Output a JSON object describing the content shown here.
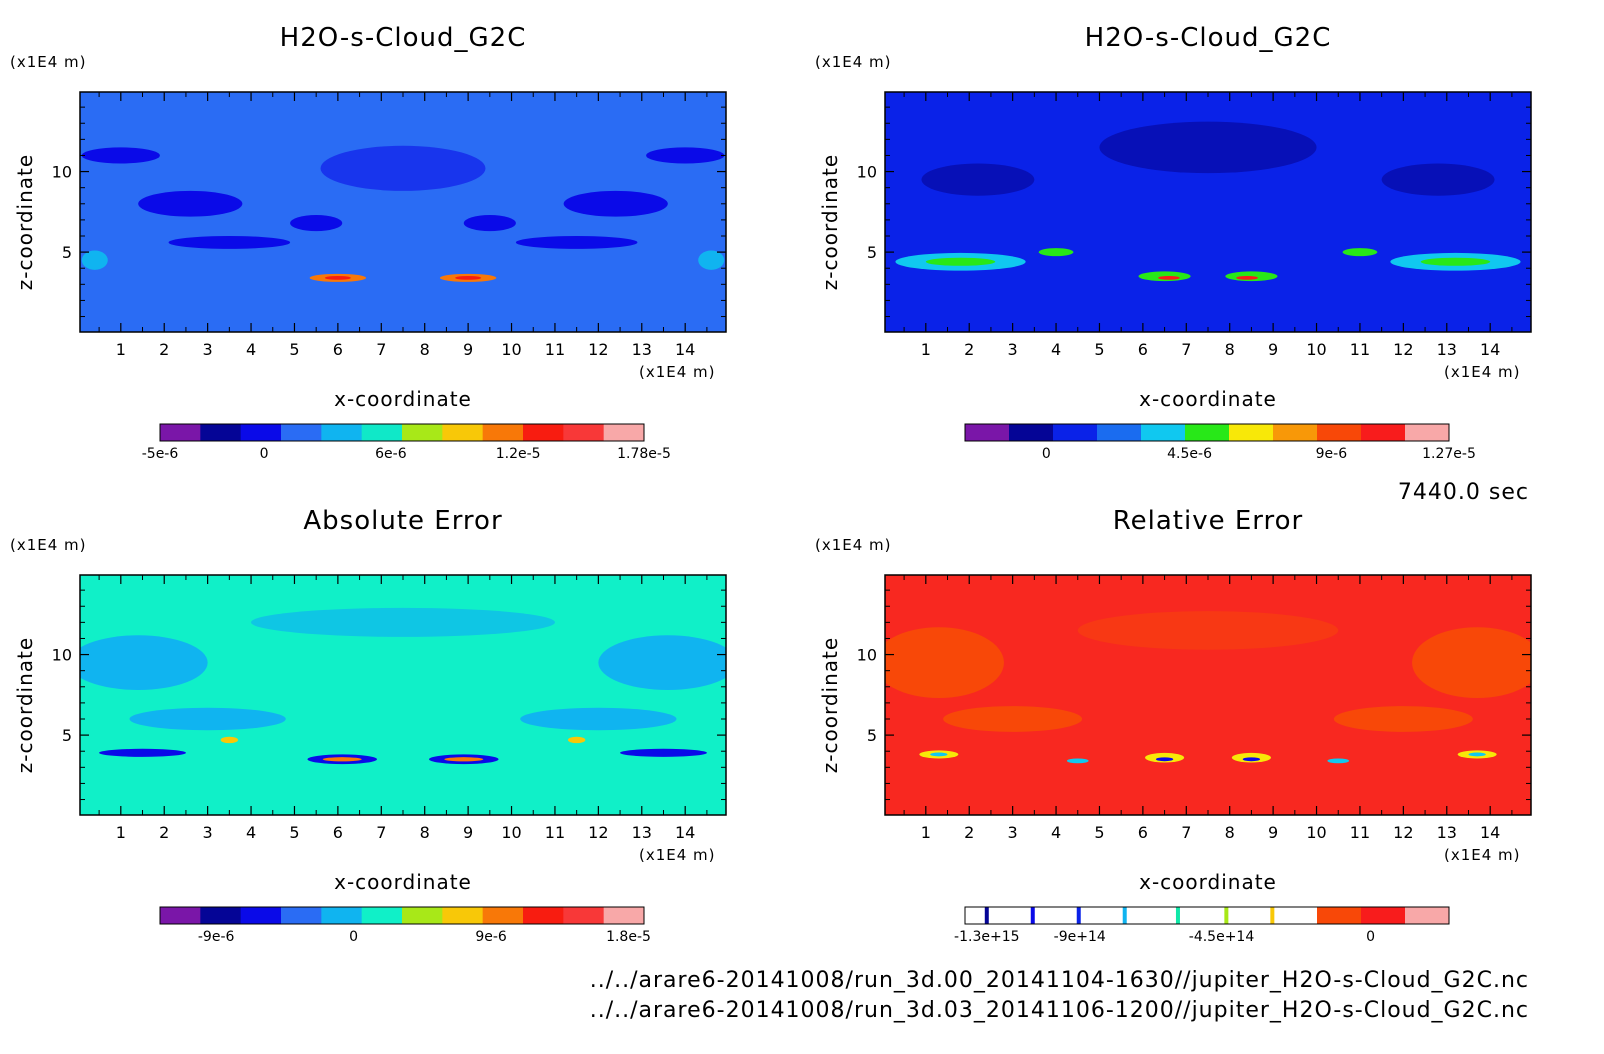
{
  "chart_data": [
    {
      "type": "heatmap",
      "title": "H2O-s-Cloud_G2C",
      "xlabel": "x-coordinate",
      "ylabel": "z-coordinate",
      "x_unit": "(x1E4 m)",
      "y_unit": "(x1E4 m)",
      "xlim": [
        0.06,
        14.94
      ],
      "ylim": [
        0.04,
        14.94
      ],
      "x_ticks": [
        "1",
        "2",
        "3",
        "4",
        "5",
        "6",
        "7",
        "8",
        "9",
        "10",
        "11",
        "12",
        "13",
        "14"
      ],
      "y_ticks": [
        "5",
        "10"
      ],
      "background_color": "#2a6cf4",
      "colorbar": {
        "colors": [
          "#7a16a8",
          "#050596",
          "#0a0ae8",
          "#2a6cf4",
          "#10b4f0",
          "#10e8c8",
          "#a8e818",
          "#f8c808",
          "#f87808",
          "#f81c10",
          "#f83838",
          "#f8a8a8"
        ],
        "labels": [
          "-5e-6",
          "0",
          "6e-6",
          "1.2e-5",
          "1.78e-5"
        ]
      }
    },
    {
      "type": "heatmap",
      "title": "H2O-s-Cloud_G2C",
      "xlabel": "x-coordinate",
      "ylabel": "z-coordinate",
      "x_unit": "(x1E4 m)",
      "y_unit": "(x1E4 m)",
      "xlim": [
        0.06,
        14.94
      ],
      "ylim": [
        0.04,
        14.94
      ],
      "x_ticks": [
        "1",
        "2",
        "3",
        "4",
        "5",
        "6",
        "7",
        "8",
        "9",
        "10",
        "11",
        "12",
        "13",
        "14"
      ],
      "y_ticks": [
        "5",
        "10"
      ],
      "background_color": "#0a22e8",
      "colorbar": {
        "colors": [
          "#7a16a8",
          "#050596",
          "#0a22e8",
          "#1a6cf0",
          "#10c8f0",
          "#28e818",
          "#f8e808",
          "#f89808",
          "#f84808",
          "#f81c1c",
          "#f8a8a8"
        ],
        "labels": [
          "0",
          "4.5e-6",
          "9e-6",
          "1.27e-5"
        ]
      }
    },
    {
      "type": "heatmap",
      "title": "Absolute Error",
      "xlabel": "x-coordinate",
      "ylabel": "z-coordinate",
      "x_unit": "(x1E4 m)",
      "y_unit": "(x1E4 m)",
      "xlim": [
        0.06,
        14.94
      ],
      "ylim": [
        0.04,
        14.94
      ],
      "x_ticks": [
        "1",
        "2",
        "3",
        "4",
        "5",
        "6",
        "7",
        "8",
        "9",
        "10",
        "11",
        "12",
        "13",
        "14"
      ],
      "y_ticks": [
        "5",
        "10"
      ],
      "background_color": "#10f0c8",
      "colorbar": {
        "colors": [
          "#7a16a8",
          "#050596",
          "#0a0ae8",
          "#2a6cf4",
          "#10b4f0",
          "#10f0c8",
          "#a8e818",
          "#f8c808",
          "#f87808",
          "#f81c10",
          "#f83838",
          "#f8a8a8"
        ],
        "labels": [
          "-9e-6",
          "0",
          "9e-6",
          "1.8e-5"
        ]
      }
    },
    {
      "type": "heatmap",
      "title": "Relative Error",
      "xlabel": "x-coordinate",
      "ylabel": "z-coordinate",
      "x_unit": "(x1E4 m)",
      "y_unit": "(x1E4 m)",
      "xlim": [
        0.06,
        14.94
      ],
      "ylim": [
        0.04,
        14.94
      ],
      "x_ticks": [
        "1",
        "2",
        "3",
        "4",
        "5",
        "6",
        "7",
        "8",
        "9",
        "10",
        "11",
        "12",
        "13",
        "14"
      ],
      "y_ticks": [
        "5",
        "10"
      ],
      "background_color": "#f82820",
      "colorbar": {
        "colors": [
          "#ffffff",
          "#ffffff",
          "#ffffff",
          "#ffffff",
          "#ffffff",
          "#ffffff",
          "#ffffff",
          "#ffffff",
          "#f84808",
          "#f81c1c",
          "#f8a8a8"
        ],
        "stripes": [
          {
            "pos": 0.045,
            "color": "#050596"
          },
          {
            "pos": 0.14,
            "color": "#0a0ae8"
          },
          {
            "pos": 0.235,
            "color": "#0a22e8"
          },
          {
            "pos": 0.33,
            "color": "#10b4f0"
          },
          {
            "pos": 0.44,
            "color": "#10e8a8"
          },
          {
            "pos": 0.54,
            "color": "#a8e818"
          },
          {
            "pos": 0.635,
            "color": "#f8c808"
          }
        ],
        "labels": [
          "-1.3e+15",
          "-9e+14",
          "-4.5e+14",
          "0"
        ]
      }
    }
  ],
  "time_label": "7440.0 sec",
  "file_paths": [
    "../../arare6-20141008/run_3d.00_20141104-1630//jupiter_H2O-s-Cloud_G2C.nc",
    "../../arare6-20141008/run_3d.03_20141106-1200//jupiter_H2O-s-Cloud_G2C.nc"
  ]
}
